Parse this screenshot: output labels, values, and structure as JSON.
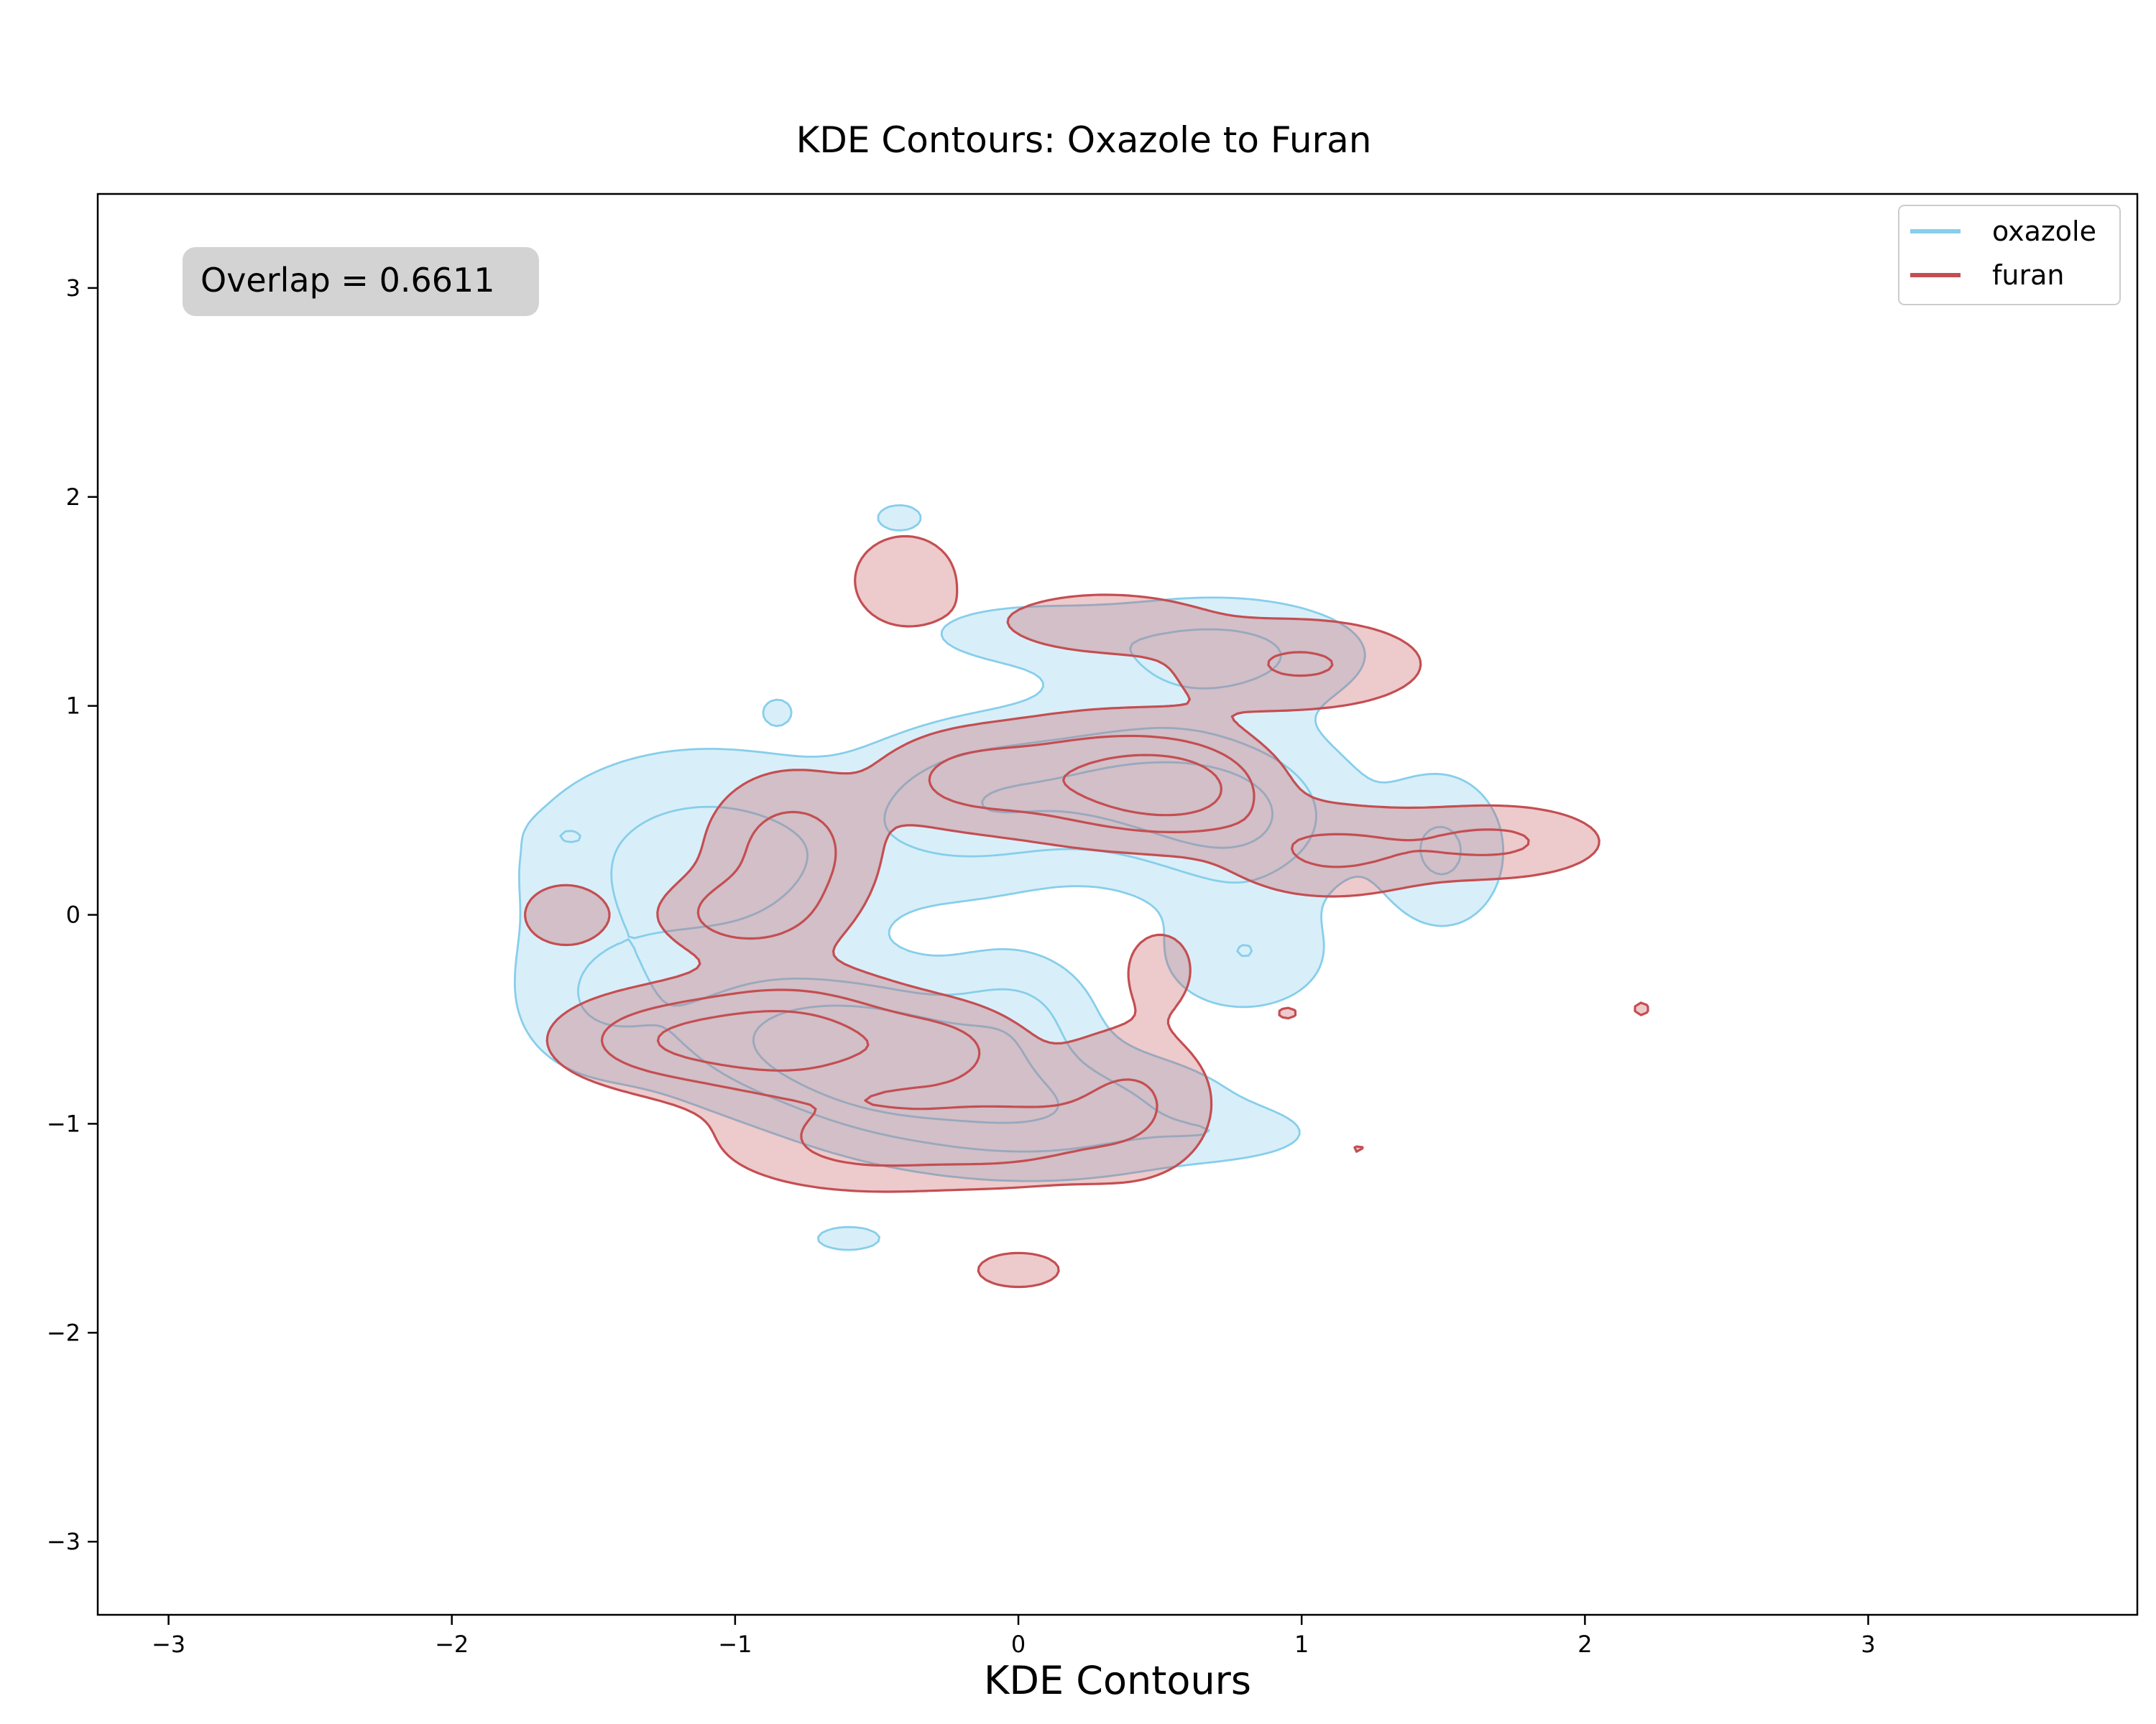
{
  "chart_data": {
    "type": "contour",
    "title": "KDE Contours: Oxazole to Furan",
    "xlabel": "KDE Contours",
    "ylabel": "",
    "xlim": [
      -3.25,
      3.95
    ],
    "ylim": [
      -3.35,
      3.45
    ],
    "x_ticks": [
      -3,
      -2,
      -1,
      0,
      1,
      2,
      3
    ],
    "y_ticks": [
      -3,
      -2,
      -1,
      0,
      1,
      2,
      3
    ],
    "x_tick_labels": [
      "−3",
      "−2",
      "−1",
      "0",
      "1",
      "2",
      "3"
    ],
    "y_tick_labels": [
      "−3",
      "−2",
      "−1",
      "0",
      "1",
      "2",
      "3"
    ],
    "grid": false,
    "legend_position": "top-right",
    "annotation": "Overlap = 0.6611",
    "series": [
      {
        "name": "oxazole",
        "color": "#87ceeb",
        "centers": [
          {
            "x": -1.1,
            "y": 0.25,
            "sx": 0.42,
            "sy": 0.35,
            "w": 1.0
          },
          {
            "x": -0.7,
            "y": -0.6,
            "sx": 0.38,
            "sy": 0.22,
            "w": 1.3
          },
          {
            "x": -0.45,
            "y": -0.72,
            "sx": 0.22,
            "sy": 0.18,
            "w": 0.7
          },
          {
            "x": 0.05,
            "y": -0.95,
            "sx": 0.45,
            "sy": 0.2,
            "w": 1.1
          },
          {
            "x": 0.4,
            "y": 0.6,
            "sx": 0.4,
            "sy": 0.25,
            "w": 1.2
          },
          {
            "x": 0.0,
            "y": -0.5,
            "sx": 0.18,
            "sy": 0.22,
            "w": 0.7
          },
          {
            "x": 0.8,
            "y": 0.4,
            "sx": 0.25,
            "sy": 0.25,
            "w": 0.8
          },
          {
            "x": 1.5,
            "y": 0.3,
            "sx": 0.15,
            "sy": 0.25,
            "w": 0.8
          },
          {
            "x": -0.2,
            "y": 0.5,
            "sx": 0.25,
            "sy": 0.25,
            "w": 0.7
          },
          {
            "x": 0.7,
            "y": 1.25,
            "sx": 0.35,
            "sy": 0.18,
            "w": 0.9
          },
          {
            "x": 0.8,
            "y": -0.2,
            "sx": 0.2,
            "sy": 0.18,
            "w": 0.7
          },
          {
            "x": -1.5,
            "y": -0.4,
            "sx": 0.2,
            "sy": 0.25,
            "w": 0.6
          },
          {
            "x": 0.0,
            "y": 1.35,
            "sx": 0.25,
            "sy": 0.1,
            "w": 0.5
          },
          {
            "x": -0.42,
            "y": 1.9,
            "sx": 0.1,
            "sy": 0.08,
            "w": 0.4
          },
          {
            "x": -0.6,
            "y": -1.55,
            "sx": 0.14,
            "sy": 0.07,
            "w": 0.4
          },
          {
            "x": -0.85,
            "y": 0.98,
            "sx": 0.05,
            "sy": 0.06,
            "w": 0.32
          },
          {
            "x": -1.6,
            "y": 0.38,
            "sx": 0.06,
            "sy": 0.05,
            "w": 0.32
          },
          {
            "x": 0.75,
            "y": -1.05,
            "sx": 0.2,
            "sy": 0.08,
            "w": 0.4
          }
        ]
      },
      {
        "name": "furan",
        "color": "#c44e52",
        "centers": [
          {
            "x": -0.8,
            "y": 0.3,
            "sx": 0.2,
            "sy": 0.25,
            "w": 1.0
          },
          {
            "x": -1.0,
            "y": 0.0,
            "sx": 0.18,
            "sy": 0.12,
            "w": 0.8
          },
          {
            "x": -0.8,
            "y": -0.6,
            "sx": 0.3,
            "sy": 0.2,
            "w": 1.4
          },
          {
            "x": -1.3,
            "y": -0.6,
            "sx": 0.25,
            "sy": 0.15,
            "w": 0.8
          },
          {
            "x": -0.25,
            "y": -0.65,
            "sx": 0.2,
            "sy": 0.15,
            "w": 0.7
          },
          {
            "x": 0.3,
            "y": 0.65,
            "sx": 0.3,
            "sy": 0.2,
            "w": 1.1
          },
          {
            "x": 0.6,
            "y": 0.6,
            "sx": 0.2,
            "sy": 0.15,
            "w": 0.9
          },
          {
            "x": -0.2,
            "y": 0.65,
            "sx": 0.2,
            "sy": 0.15,
            "w": 0.7
          },
          {
            "x": 1.1,
            "y": 0.3,
            "sx": 0.25,
            "sy": 0.15,
            "w": 0.8
          },
          {
            "x": 1.7,
            "y": 0.35,
            "sx": 0.25,
            "sy": 0.12,
            "w": 0.8
          },
          {
            "x": -0.5,
            "y": -1.1,
            "sx": 0.35,
            "sy": 0.15,
            "w": 0.9
          },
          {
            "x": 0.4,
            "y": -0.9,
            "sx": 0.2,
            "sy": 0.25,
            "w": 0.8
          },
          {
            "x": 0.0,
            "y": -1.05,
            "sx": 0.2,
            "sy": 0.15,
            "w": 0.6
          },
          {
            "x": 0.3,
            "y": 1.4,
            "sx": 0.25,
            "sy": 0.1,
            "w": 0.7
          },
          {
            "x": 1.0,
            "y": 1.2,
            "sx": 0.3,
            "sy": 0.15,
            "w": 0.8
          },
          {
            "x": -0.4,
            "y": 1.6,
            "sx": 0.15,
            "sy": 0.18,
            "w": 0.6
          },
          {
            "x": -1.6,
            "y": 0.0,
            "sx": 0.12,
            "sy": 0.12,
            "w": 0.6
          },
          {
            "x": 0.0,
            "y": -1.7,
            "sx": 0.14,
            "sy": 0.08,
            "w": 0.5
          },
          {
            "x": 0.95,
            "y": -0.47,
            "sx": 0.06,
            "sy": 0.05,
            "w": 0.34
          },
          {
            "x": 2.2,
            "y": -0.45,
            "sx": 0.05,
            "sy": 0.06,
            "w": 0.34
          },
          {
            "x": 1.2,
            "y": -1.12,
            "sx": 0.05,
            "sy": 0.04,
            "w": 0.32
          },
          {
            "x": 0.5,
            "y": -0.25,
            "sx": 0.1,
            "sy": 0.15,
            "w": 0.5
          }
        ]
      }
    ]
  }
}
